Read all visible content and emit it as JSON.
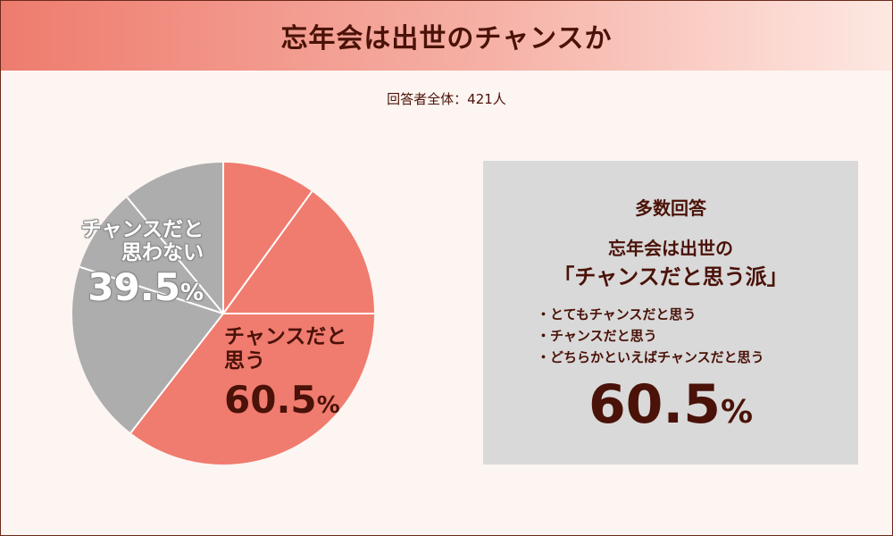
{
  "title": "忘年会は出世のチャンスか",
  "respondents": "回答者全体：421人",
  "chart_data": {
    "type": "pie",
    "title": "",
    "slices": [
      {
        "label": "チャンスだと思う",
        "value": 60.5,
        "color": "#f07b6f"
      },
      {
        "label": "チャンスだと思わない",
        "value": 39.5,
        "color": "#adadad"
      }
    ],
    "sub_dividers_percent": [
      10,
      25
    ],
    "grey_sub_dividers_percent": [
      80,
      89
    ],
    "labels": {
      "yes_line1": "チャンスだと",
      "yes_line2": "思う",
      "yes_value": "60.5",
      "no_line1": "チャンスだと",
      "no_line2": "思わない",
      "no_value": "39.5",
      "percent_sign": "%"
    }
  },
  "summary": {
    "heading": "多数回答",
    "subheading_line1": "忘年会は出世の",
    "subheading_line2": "「チャンスだと思う派」",
    "items": [
      "とてもチャンスだと思う",
      "チャンスだと思う",
      "どちらかといえばチャンスだと思う"
    ],
    "value": "60.5",
    "percent_sign": "%"
  }
}
